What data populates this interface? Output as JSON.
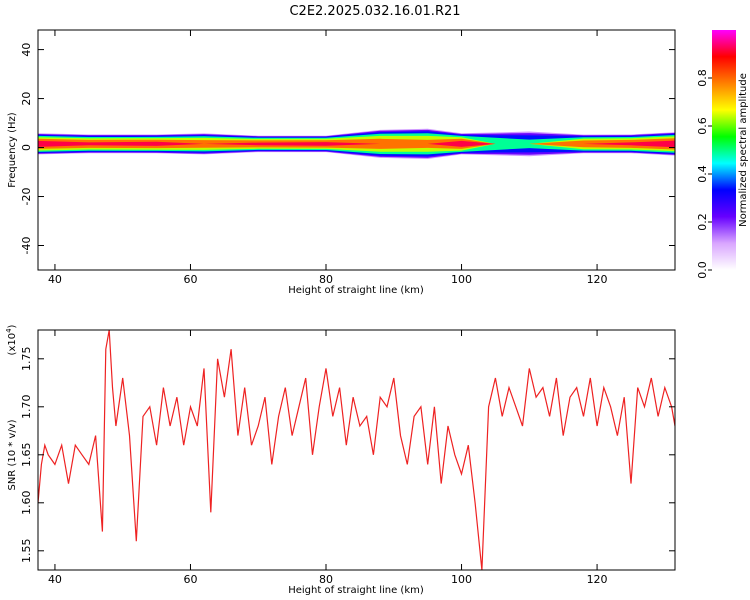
{
  "title": "C2E2.2025.032.16.01.R21",
  "chart_data": [
    {
      "type": "heatmap",
      "xlabel": "Height of straight line (km)",
      "ylabel": "Frequency (Hz)",
      "xlim": [
        37.5,
        131.5
      ],
      "ylim": [
        -50,
        48
      ],
      "xticks": [
        40,
        60,
        80,
        100,
        120
      ],
      "yticks": [
        40,
        20,
        0,
        -20,
        -40
      ],
      "band_center_hz": 1.5,
      "band_profile": [
        {
          "x": 37.5,
          "halfwidth": 4.5,
          "peak": 0.95
        },
        {
          "x": 45,
          "halfwidth": 4,
          "peak": 0.9
        },
        {
          "x": 55,
          "halfwidth": 4,
          "peak": 0.92
        },
        {
          "x": 62,
          "halfwidth": 4.5,
          "peak": 0.85
        },
        {
          "x": 70,
          "halfwidth": 3.5,
          "peak": 0.9
        },
        {
          "x": 80,
          "halfwidth": 3.5,
          "peak": 0.92
        },
        {
          "x": 88,
          "halfwidth": 6,
          "peak": 0.85
        },
        {
          "x": 95,
          "halfwidth": 6.5,
          "peak": 0.8
        },
        {
          "x": 100,
          "halfwidth": 4.5,
          "peak": 0.95
        },
        {
          "x": 105,
          "halfwidth": 5,
          "peak": 0.6
        },
        {
          "x": 110,
          "halfwidth": 5.5,
          "peak": 0.5
        },
        {
          "x": 118,
          "halfwidth": 4,
          "peak": 0.85
        },
        {
          "x": 125,
          "halfwidth": 4,
          "peak": 0.9
        },
        {
          "x": 131.5,
          "halfwidth": 5,
          "peak": 0.95
        }
      ],
      "colorbar": {
        "label": "Normalized spectral amplitude",
        "range": [
          0,
          1
        ],
        "ticks": [
          "0.0",
          "0.2",
          "0.4",
          "0.6",
          "0.8"
        ],
        "colors": [
          "#ffffff",
          "#d9a6ff",
          "#6600ff",
          "#0000ff",
          "#00ffff",
          "#00ff00",
          "#ffff00",
          "#ff8000",
          "#ff0000",
          "#ff00ff"
        ]
      }
    },
    {
      "type": "line",
      "xlabel": "Height of straight line (km)",
      "ylabel": "SNR (10 * v/v)",
      "y_multiplier_base": "(x10",
      "y_multiplier_exp": "4",
      "y_multiplier_close": ")",
      "xlim": [
        37.5,
        131.5
      ],
      "ylim": [
        1.53,
        1.78
      ],
      "xticks": [
        40,
        60,
        80,
        100,
        120
      ],
      "yticks": [
        "1.55",
        "1.60",
        "1.65",
        "1.70",
        "1.75"
      ],
      "color": "#ee2222",
      "series": [
        {
          "x": [
            37.5,
            38,
            38.5,
            39,
            40,
            41,
            42,
            43,
            44,
            45,
            46,
            47,
            47.5,
            48,
            48.5,
            49,
            50,
            51,
            52,
            53,
            54,
            55,
            56,
            57,
            58,
            59,
            60,
            61,
            62,
            63,
            64,
            65,
            66,
            67,
            68,
            69,
            70,
            71,
            72,
            73,
            74,
            75,
            76,
            77,
            78,
            79,
            80,
            81,
            82,
            83,
            84,
            85,
            86,
            87,
            88,
            89,
            90,
            91,
            92,
            93,
            94,
            95,
            96,
            97,
            98,
            99,
            100,
            101,
            102,
            103,
            104,
            105,
            106,
            107,
            108,
            109,
            110,
            111,
            112,
            113,
            114,
            115,
            116,
            117,
            118,
            119,
            120,
            121,
            122,
            123,
            124,
            125,
            126,
            127,
            128,
            129,
            130,
            131,
            131.5
          ],
          "values": [
            1.6,
            1.64,
            1.66,
            1.65,
            1.64,
            1.66,
            1.62,
            1.66,
            1.65,
            1.64,
            1.67,
            1.57,
            1.76,
            1.78,
            1.72,
            1.68,
            1.73,
            1.67,
            1.56,
            1.69,
            1.7,
            1.66,
            1.72,
            1.68,
            1.71,
            1.66,
            1.7,
            1.68,
            1.74,
            1.59,
            1.75,
            1.71,
            1.76,
            1.67,
            1.72,
            1.66,
            1.68,
            1.71,
            1.64,
            1.69,
            1.72,
            1.67,
            1.7,
            1.73,
            1.65,
            1.7,
            1.74,
            1.69,
            1.72,
            1.66,
            1.71,
            1.68,
            1.69,
            1.65,
            1.71,
            1.7,
            1.73,
            1.67,
            1.64,
            1.69,
            1.7,
            1.64,
            1.7,
            1.62,
            1.68,
            1.65,
            1.63,
            1.66,
            1.6,
            1.53,
            1.7,
            1.73,
            1.69,
            1.72,
            1.7,
            1.68,
            1.74,
            1.71,
            1.72,
            1.69,
            1.73,
            1.67,
            1.71,
            1.72,
            1.69,
            1.73,
            1.68,
            1.72,
            1.7,
            1.67,
            1.71,
            1.62,
            1.72,
            1.7,
            1.73,
            1.69,
            1.72,
            1.7,
            1.68
          ]
        }
      ]
    }
  ]
}
